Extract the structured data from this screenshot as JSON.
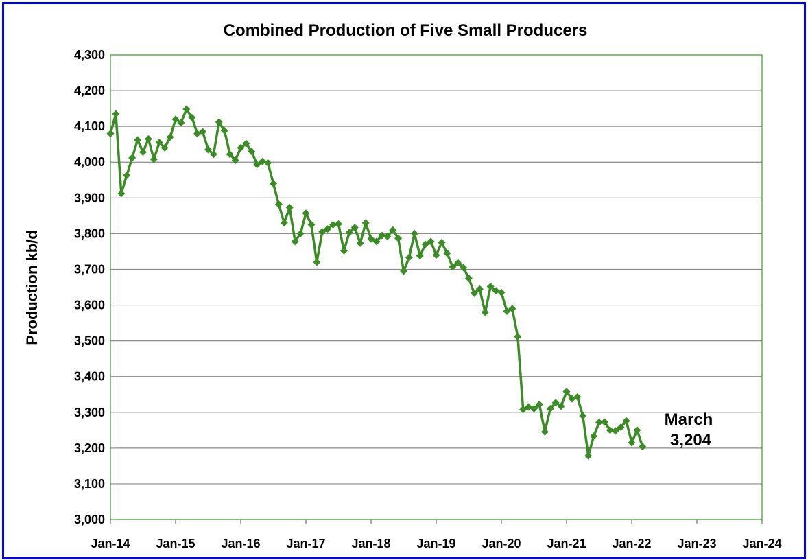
{
  "chart_data": {
    "type": "line",
    "title": "Combined Production of Five Small Producers",
    "xlabel": "",
    "ylabel": "Production kb/d",
    "ylim": [
      3000,
      4300
    ],
    "yticks": [
      "3,000",
      "3,100",
      "3,200",
      "3,300",
      "3,400",
      "3,500",
      "3,600",
      "3,700",
      "3,800",
      "3,900",
      "4,000",
      "4,100",
      "4,200",
      "4,300"
    ],
    "xticks": [
      "Jan-14",
      "Jan-15",
      "Jan-16",
      "Jan-17",
      "Jan-18",
      "Jan-19",
      "Jan-20",
      "Jan-21",
      "Jan-22",
      "Jan-23",
      "Jan-24"
    ],
    "x_start": "Jan-14",
    "x_end": "Jan-24",
    "grid": "horizontal",
    "line_color": "#3a8c24",
    "marker": "diamond",
    "series": [
      {
        "x": [
          "Jan-14",
          "Feb-14",
          "Mar-14",
          "Apr-14",
          "May-14",
          "Jun-14",
          "Jul-14",
          "Aug-14",
          "Sep-14",
          "Oct-14",
          "Nov-14",
          "Dec-14",
          "Jan-15",
          "Feb-15",
          "Mar-15",
          "Apr-15",
          "May-15",
          "Jun-15",
          "Jul-15",
          "Aug-15",
          "Sep-15",
          "Oct-15",
          "Nov-15",
          "Dec-15",
          "Jan-16",
          "Feb-16",
          "Mar-16",
          "Apr-16",
          "May-16",
          "Jun-16",
          "Jul-16",
          "Aug-16",
          "Sep-16",
          "Oct-16",
          "Nov-16",
          "Dec-16",
          "Jan-17",
          "Feb-17",
          "Mar-17",
          "Apr-17",
          "May-17",
          "Jun-17",
          "Jul-17",
          "Aug-17",
          "Sep-17",
          "Oct-17",
          "Nov-17",
          "Dec-17",
          "Jan-18",
          "Feb-18",
          "Mar-18",
          "Apr-18",
          "May-18",
          "Jun-18",
          "Jul-18",
          "Aug-18",
          "Sep-18",
          "Oct-18",
          "Nov-18",
          "Dec-18",
          "Jan-19",
          "Feb-19",
          "Mar-19",
          "Apr-19",
          "May-19",
          "Jun-19",
          "Jul-19",
          "Aug-19",
          "Sep-19",
          "Oct-19",
          "Nov-19",
          "Dec-19",
          "Jan-20",
          "Feb-20",
          "Mar-20",
          "Apr-20",
          "May-20",
          "Jun-20",
          "Jul-20",
          "Aug-20",
          "Sep-20",
          "Oct-20",
          "Nov-20",
          "Dec-20",
          "Jan-21",
          "Feb-21",
          "Mar-21",
          "Apr-21",
          "May-21",
          "Jun-21",
          "Jul-21",
          "Aug-21",
          "Sep-21",
          "Oct-21",
          "Nov-21",
          "Dec-21",
          "Jan-22",
          "Feb-22",
          "Mar-22"
        ],
        "values": [
          4080,
          4135,
          3912,
          3963,
          4012,
          4062,
          4028,
          4065,
          4008,
          4055,
          4040,
          4070,
          4120,
          4110,
          4148,
          4125,
          4080,
          4085,
          4035,
          4022,
          4112,
          4088,
          4022,
          4005,
          4040,
          4052,
          4030,
          3993,
          4002,
          3998,
          3940,
          3882,
          3830,
          3873,
          3778,
          3800,
          3857,
          3825,
          3720,
          3805,
          3813,
          3825,
          3827,
          3752,
          3803,
          3817,
          3773,
          3830,
          3785,
          3778,
          3795,
          3792,
          3810,
          3787,
          3695,
          3733,
          3800,
          3738,
          3770,
          3778,
          3740,
          3775,
          3745,
          3707,
          3718,
          3705,
          3675,
          3633,
          3645,
          3580,
          3652,
          3640,
          3635,
          3583,
          3590,
          3512,
          3308,
          3315,
          3310,
          3322,
          3245,
          3310,
          3327,
          3317,
          3358,
          3338,
          3343,
          3290,
          3178,
          3233,
          3272,
          3273,
          3250,
          3248,
          3258,
          3276,
          3215,
          3250,
          3204
        ]
      }
    ],
    "annotation": {
      "line1": "March",
      "line2": "3,204"
    }
  }
}
